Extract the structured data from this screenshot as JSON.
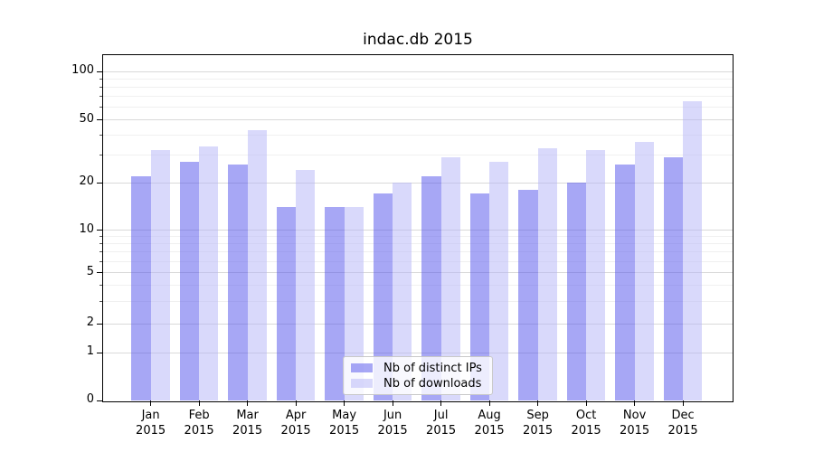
{
  "title": "indac.db 2015",
  "chart_data": {
    "type": "bar",
    "title": "indac.db 2015",
    "categories": [
      "Jan",
      "Feb",
      "Mar",
      "Apr",
      "May",
      "Jun",
      "Jul",
      "Aug",
      "Sep",
      "Oct",
      "Nov",
      "Dec"
    ],
    "year": "2015",
    "series": [
      {
        "name": "Nb of distinct IPs",
        "color": "rgba(79,79,235,0.5)",
        "values": [
          22,
          27,
          26,
          14,
          14,
          17,
          22,
          17,
          18,
          20,
          26,
          29
        ]
      },
      {
        "name": "Nb of downloads",
        "color": "rgba(179,179,247,0.5)",
        "values": [
          32,
          34,
          43,
          24,
          14,
          20,
          29,
          27,
          33,
          32,
          36,
          65
        ]
      }
    ],
    "xlabel": "",
    "ylabel": "",
    "y_axis": {
      "scale": "symlog",
      "major_ticks": [
        0,
        1,
        2,
        5,
        10,
        20,
        50,
        100
      ],
      "minor_ticks": [
        3,
        4,
        6,
        7,
        8,
        9,
        30,
        40,
        60,
        70,
        80,
        90
      ],
      "ylim": [
        0,
        126
      ]
    },
    "grid": true,
    "legend_position": "lower center"
  },
  "colors": {
    "grid_major": "#d9d9d9",
    "grid_minor": "#f0f0f0",
    "axis": "#000000",
    "background": "#ffffff"
  }
}
